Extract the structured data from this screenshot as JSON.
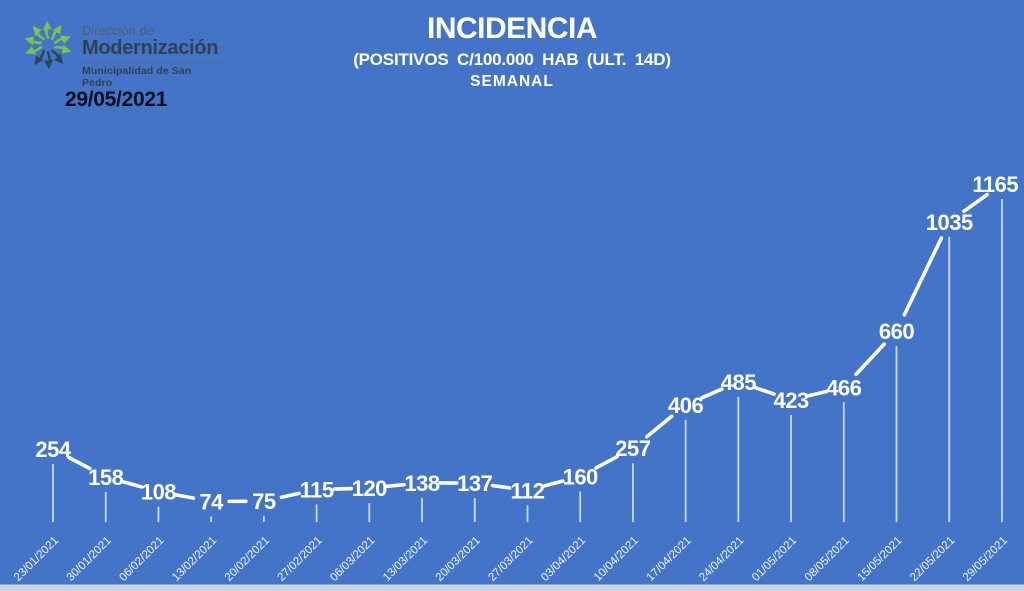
{
  "header": {
    "date_label": "29/05/2021"
  },
  "logo": {
    "icon": "pinwheel-arrows-icon",
    "line1": "Dirección de",
    "line2": "Modernización",
    "line3": "Municipalidad de San Pedro"
  },
  "title_block": {
    "title": "INCIDENCIA",
    "subtitle": "(POSITIVOS C/100.000 HAB (ULT. 14D)",
    "period": "SEMANAL"
  },
  "colors": {
    "background": "#4474C8",
    "line": "#FFFFFF",
    "value_label": "#FFFFFF",
    "x_label": "#FFFFFF",
    "date_text": "#0B0F1A",
    "logo_green": "#7CC24B",
    "logo_dark": "#2E4656",
    "logo_text_dark": "#333F50",
    "logo_text_gray": "#4E5D6B",
    "bottom_strip": "#CBD2E2"
  },
  "chart_data": {
    "type": "line",
    "title": "INCIDENCIA",
    "subtitle": "(POSITIVOS C/100.000 HAB (ULT. 14D)",
    "period": "SEMANAL",
    "categories": [
      "23/01/2021",
      "30/01/2021",
      "06/02/2021",
      "13/02/2021",
      "20/02/2021",
      "27/02/2021",
      "06/03/2021",
      "13/03/2021",
      "20/03/2021",
      "27/03/2021",
      "03/04/2021",
      "10/04/2021",
      "17/04/2021",
      "24/04/2021",
      "01/05/2021",
      "08/05/2021",
      "15/05/2021",
      "22/05/2021",
      "29/05/2021"
    ],
    "values": [
      254,
      158,
      108,
      74,
      75,
      115,
      120,
      138,
      137,
      112,
      160,
      257,
      406,
      485,
      423,
      466,
      660,
      1035,
      1165
    ],
    "series_name": "Incidencia semanal c/100.000 hab",
    "xlabel": "",
    "ylabel": "",
    "ylim": [
      0,
      1250
    ],
    "grid": false,
    "legend": "none",
    "line_color": "#FFFFFF",
    "data_labels": "centered-on-point",
    "drop_lines": true,
    "x_tick_rotation": 45
  }
}
